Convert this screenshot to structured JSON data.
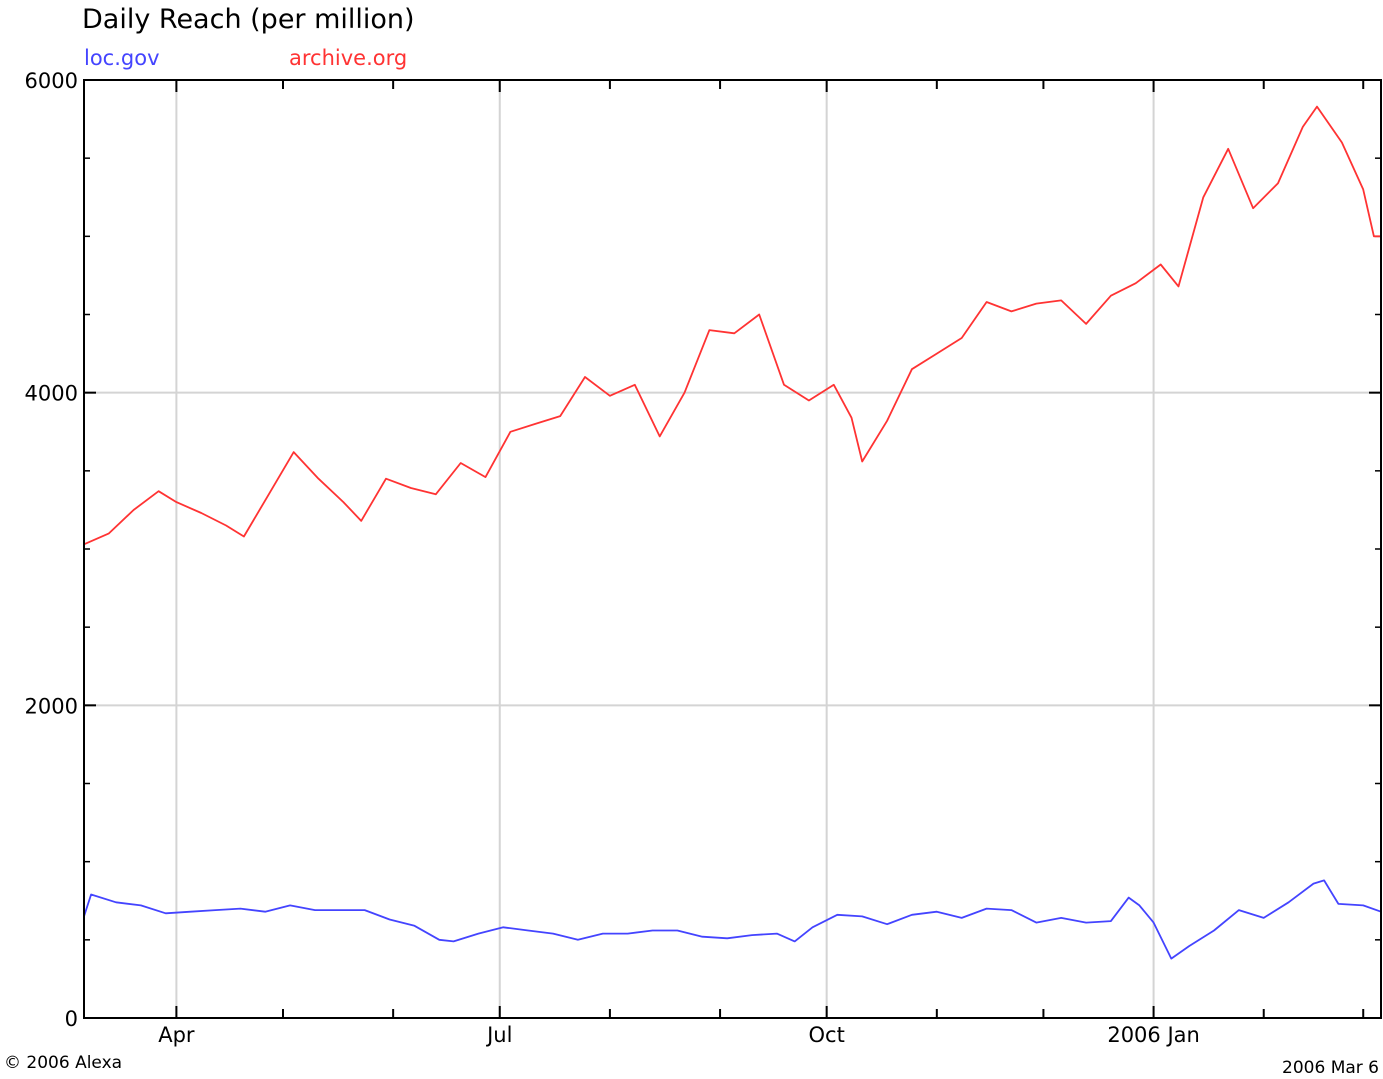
{
  "chart_data": {
    "type": "line",
    "title": "Daily Reach (per million)",
    "xlabel": "",
    "ylabel": "",
    "ylim": [
      0,
      6000
    ],
    "xlim": [
      "2005-03-06",
      "2006-03-06"
    ],
    "y_ticks": [
      0,
      2000,
      4000,
      6000
    ],
    "x_ticks": [
      {
        "x": "2005-04-01",
        "label": "Apr"
      },
      {
        "x": "2005-07-01",
        "label": "Jul"
      },
      {
        "x": "2005-10-01",
        "label": "Oct"
      },
      {
        "x": "2006-01-01",
        "label": "2006 Jan"
      }
    ],
    "x_minor_ticks": [
      "2005-05-01",
      "2005-06-01",
      "2005-08-01",
      "2005-09-01",
      "2005-11-01",
      "2005-12-01",
      "2006-02-01",
      "2006-03-01"
    ],
    "grid": true,
    "legend_position": "top-left",
    "series": [
      {
        "name": "loc.gov",
        "color": "#4444ff",
        "points": [
          [
            "2005-03-06",
            650
          ],
          [
            "2005-03-08",
            790
          ],
          [
            "2005-03-15",
            740
          ],
          [
            "2005-03-22",
            720
          ],
          [
            "2005-03-29",
            670
          ],
          [
            "2005-04-05",
            680
          ],
          [
            "2005-04-12",
            690
          ],
          [
            "2005-04-19",
            700
          ],
          [
            "2005-04-26",
            680
          ],
          [
            "2005-05-03",
            720
          ],
          [
            "2005-05-10",
            690
          ],
          [
            "2005-05-17",
            690
          ],
          [
            "2005-05-24",
            690
          ],
          [
            "2005-05-31",
            630
          ],
          [
            "2005-06-07",
            590
          ],
          [
            "2005-06-14",
            500
          ],
          [
            "2005-06-18",
            490
          ],
          [
            "2005-06-25",
            540
          ],
          [
            "2005-07-02",
            580
          ],
          [
            "2005-07-09",
            560
          ],
          [
            "2005-07-16",
            540
          ],
          [
            "2005-07-23",
            500
          ],
          [
            "2005-07-30",
            540
          ],
          [
            "2005-08-06",
            540
          ],
          [
            "2005-08-13",
            560
          ],
          [
            "2005-08-20",
            560
          ],
          [
            "2005-08-27",
            520
          ],
          [
            "2005-09-03",
            510
          ],
          [
            "2005-09-10",
            530
          ],
          [
            "2005-09-17",
            540
          ],
          [
            "2005-09-22",
            490
          ],
          [
            "2005-09-27",
            580
          ],
          [
            "2005-10-04",
            660
          ],
          [
            "2005-10-11",
            650
          ],
          [
            "2005-10-18",
            600
          ],
          [
            "2005-10-25",
            660
          ],
          [
            "2005-11-01",
            680
          ],
          [
            "2005-11-08",
            640
          ],
          [
            "2005-11-15",
            700
          ],
          [
            "2005-11-22",
            690
          ],
          [
            "2005-11-29",
            610
          ],
          [
            "2005-12-06",
            640
          ],
          [
            "2005-12-13",
            610
          ],
          [
            "2005-12-20",
            620
          ],
          [
            "2005-12-25",
            770
          ],
          [
            "2005-12-28",
            720
          ],
          [
            "2006-01-01",
            610
          ],
          [
            "2006-01-06",
            380
          ],
          [
            "2006-01-11",
            460
          ],
          [
            "2006-01-18",
            560
          ],
          [
            "2006-01-25",
            690
          ],
          [
            "2006-02-01",
            640
          ],
          [
            "2006-02-08",
            740
          ],
          [
            "2006-02-15",
            860
          ],
          [
            "2006-02-18",
            880
          ],
          [
            "2006-02-22",
            730
          ],
          [
            "2006-03-01",
            720
          ],
          [
            "2006-03-06",
            680
          ]
        ]
      },
      {
        "name": "archive.org",
        "color": "#ff3333",
        "points": [
          [
            "2005-03-06",
            3030
          ],
          [
            "2005-03-13",
            3100
          ],
          [
            "2005-03-20",
            3250
          ],
          [
            "2005-03-27",
            3370
          ],
          [
            "2005-04-01",
            3300
          ],
          [
            "2005-04-08",
            3230
          ],
          [
            "2005-04-15",
            3150
          ],
          [
            "2005-04-20",
            3080
          ],
          [
            "2005-04-27",
            3350
          ],
          [
            "2005-05-04",
            3620
          ],
          [
            "2005-05-11",
            3450
          ],
          [
            "2005-05-18",
            3300
          ],
          [
            "2005-05-23",
            3180
          ],
          [
            "2005-05-30",
            3450
          ],
          [
            "2005-06-06",
            3390
          ],
          [
            "2005-06-13",
            3350
          ],
          [
            "2005-06-20",
            3550
          ],
          [
            "2005-06-27",
            3460
          ],
          [
            "2005-07-04",
            3750
          ],
          [
            "2005-07-11",
            3800
          ],
          [
            "2005-07-18",
            3850
          ],
          [
            "2005-07-25",
            4100
          ],
          [
            "2005-08-01",
            3980
          ],
          [
            "2005-08-08",
            4050
          ],
          [
            "2005-08-15",
            3720
          ],
          [
            "2005-08-22",
            4000
          ],
          [
            "2005-08-29",
            4400
          ],
          [
            "2005-09-05",
            4380
          ],
          [
            "2005-09-12",
            4500
          ],
          [
            "2005-09-19",
            4050
          ],
          [
            "2005-09-26",
            3950
          ],
          [
            "2005-10-03",
            4050
          ],
          [
            "2005-10-08",
            3840
          ],
          [
            "2005-10-11",
            3560
          ],
          [
            "2005-10-18",
            3820
          ],
          [
            "2005-10-25",
            4150
          ],
          [
            "2005-11-01",
            4250
          ],
          [
            "2005-11-08",
            4350
          ],
          [
            "2005-11-15",
            4580
          ],
          [
            "2005-11-22",
            4520
          ],
          [
            "2005-11-29",
            4570
          ],
          [
            "2005-12-06",
            4590
          ],
          [
            "2005-12-13",
            4440
          ],
          [
            "2005-12-20",
            4620
          ],
          [
            "2005-12-27",
            4700
          ],
          [
            "2006-01-03",
            4820
          ],
          [
            "2006-01-08",
            4680
          ],
          [
            "2006-01-15",
            5250
          ],
          [
            "2006-01-22",
            5560
          ],
          [
            "2006-01-29",
            5180
          ],
          [
            "2006-02-05",
            5340
          ],
          [
            "2006-02-12",
            5700
          ],
          [
            "2006-02-16",
            5830
          ],
          [
            "2006-02-23",
            5600
          ],
          [
            "2006-03-01",
            5300
          ],
          [
            "2006-03-04",
            5000
          ],
          [
            "2006-03-06",
            5000
          ]
        ]
      }
    ]
  },
  "footer": {
    "copyright": "© 2006 Alexa",
    "date": "2006 Mar 6"
  }
}
